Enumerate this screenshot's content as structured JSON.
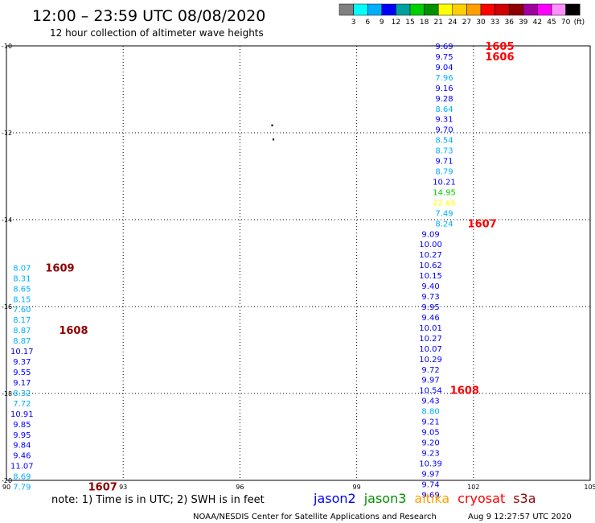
{
  "header": {
    "title": "12:00 – 23:59 UTC 08/08/2020",
    "subtitle": "12 hour collection of altimeter wave heights"
  },
  "colorbar": {
    "colors": [
      "#808080",
      "#00ffff",
      "#00b0ff",
      "#0000ff",
      "#00a0a0",
      "#00d000",
      "#009000",
      "#ffff00",
      "#ffd000",
      "#ffa000",
      "#ff0000",
      "#d00000",
      "#900000",
      "#a000a0",
      "#ff00ff",
      "#ff90ff",
      "#000000"
    ],
    "labels": [
      "3",
      "6",
      "9",
      "12",
      "15",
      "18",
      "21",
      "24",
      "27",
      "30",
      "33",
      "36",
      "39",
      "42",
      "45",
      "70"
    ],
    "unit": "(ft)"
  },
  "map": {
    "lat_labels": [
      "-10",
      "-12",
      "-14",
      "-16",
      "-18",
      "-20"
    ],
    "lon_labels": [
      "90",
      "93",
      "96",
      "99",
      "102",
      "105"
    ]
  },
  "tracks": [
    {
      "lon": 101.25,
      "points": [
        {
          "lat": -10.0,
          "v": "9.69",
          "c": "#0000ff"
        },
        {
          "lat": -10.24,
          "v": "9.75",
          "c": "#0000ff"
        },
        {
          "lat": -10.48,
          "v": "9.04",
          "c": "#0000ff"
        },
        {
          "lat": -10.72,
          "v": "7.96",
          "c": "#00b0ff"
        },
        {
          "lat": -10.96,
          "v": "9.16",
          "c": "#0000ff"
        },
        {
          "lat": -11.2,
          "v": "9.28",
          "c": "#0000ff"
        },
        {
          "lat": -11.44,
          "v": "8.64",
          "c": "#00b0ff"
        },
        {
          "lat": -11.68,
          "v": "9.31",
          "c": "#0000ff"
        },
        {
          "lat": -11.92,
          "v": "9.70",
          "c": "#0000ff"
        },
        {
          "lat": -12.16,
          "v": "8.54",
          "c": "#00b0ff"
        },
        {
          "lat": -12.4,
          "v": "8.73",
          "c": "#00b0ff"
        },
        {
          "lat": -12.64,
          "v": "9.71",
          "c": "#0000ff"
        },
        {
          "lat": -12.88,
          "v": "8.79",
          "c": "#00b0ff"
        },
        {
          "lat": -13.12,
          "v": "10.21",
          "c": "#0000ff"
        },
        {
          "lat": -13.36,
          "v": "14.95",
          "c": "#00d000"
        },
        {
          "lat": -13.6,
          "v": "22.65",
          "c": "#ffff00"
        },
        {
          "lat": -13.84,
          "v": "7.49",
          "c": "#00b0ff"
        },
        {
          "lat": -14.08,
          "v": "8.24",
          "c": "#00b0ff"
        }
      ]
    },
    {
      "lon": 100.9,
      "points": [
        {
          "lat": -14.32,
          "v": "9.09",
          "c": "#0000ff"
        },
        {
          "lat": -14.56,
          "v": "10.00",
          "c": "#0000ff"
        },
        {
          "lat": -14.8,
          "v": "10.27",
          "c": "#0000ff"
        },
        {
          "lat": -15.04,
          "v": "10.62",
          "c": "#0000ff"
        },
        {
          "lat": -15.28,
          "v": "10.15",
          "c": "#0000ff"
        },
        {
          "lat": -15.52,
          "v": "9.40",
          "c": "#0000ff"
        },
        {
          "lat": -15.76,
          "v": "9.73",
          "c": "#0000ff"
        },
        {
          "lat": -16.0,
          "v": "9.95",
          "c": "#0000ff"
        },
        {
          "lat": -16.24,
          "v": "9.46",
          "c": "#0000ff"
        },
        {
          "lat": -16.48,
          "v": "10.01",
          "c": "#0000ff"
        },
        {
          "lat": -16.72,
          "v": "10.27",
          "c": "#0000ff"
        },
        {
          "lat": -16.96,
          "v": "10.07",
          "c": "#0000ff"
        },
        {
          "lat": -17.2,
          "v": "10.29",
          "c": "#0000ff"
        },
        {
          "lat": -17.44,
          "v": "9.72",
          "c": "#0000ff"
        },
        {
          "lat": -17.68,
          "v": "9.97",
          "c": "#0000ff"
        },
        {
          "lat": -17.92,
          "v": "10.54",
          "c": "#0000ff"
        },
        {
          "lat": -18.16,
          "v": "9.43",
          "c": "#0000ff"
        },
        {
          "lat": -18.4,
          "v": "8.80",
          "c": "#00b0ff"
        },
        {
          "lat": -18.64,
          "v": "9.21",
          "c": "#0000ff"
        },
        {
          "lat": -18.88,
          "v": "9.05",
          "c": "#0000ff"
        },
        {
          "lat": -19.12,
          "v": "9.20",
          "c": "#0000ff"
        },
        {
          "lat": -19.36,
          "v": "9.23",
          "c": "#0000ff"
        },
        {
          "lat": -19.6,
          "v": "10.39",
          "c": "#0000ff"
        },
        {
          "lat": -19.84,
          "v": "9.97",
          "c": "#0000ff"
        },
        {
          "lat": -20.08,
          "v": "9.74",
          "c": "#0000ff"
        },
        {
          "lat": -20.32,
          "v": "9.69",
          "c": "#0000ff"
        }
      ]
    },
    {
      "lon": 90.4,
      "points": [
        {
          "lat": -15.1,
          "v": "8.07",
          "c": "#00b0ff"
        },
        {
          "lat": -15.34,
          "v": "8.31",
          "c": "#00b0ff"
        },
        {
          "lat": -15.58,
          "v": "8.65",
          "c": "#00b0ff"
        },
        {
          "lat": -15.82,
          "v": "8.15",
          "c": "#00b0ff"
        },
        {
          "lat": -16.06,
          "v": "7.60",
          "c": "#00b0ff"
        },
        {
          "lat": -16.3,
          "v": "8.17",
          "c": "#00b0ff"
        },
        {
          "lat": -16.54,
          "v": "8.87",
          "c": "#00b0ff"
        },
        {
          "lat": -16.78,
          "v": "8.87",
          "c": "#00b0ff"
        },
        {
          "lat": -17.02,
          "v": "10.17",
          "c": "#0000ff"
        },
        {
          "lat": -17.26,
          "v": "9.37",
          "c": "#0000ff"
        },
        {
          "lat": -17.5,
          "v": "9.55",
          "c": "#0000ff"
        },
        {
          "lat": -17.74,
          "v": "9.17",
          "c": "#0000ff"
        },
        {
          "lat": -17.98,
          "v": "8.32",
          "c": "#00b0ff"
        },
        {
          "lat": -18.22,
          "v": "7.72",
          "c": "#00b0ff"
        },
        {
          "lat": -18.46,
          "v": "10.91",
          "c": "#0000ff"
        },
        {
          "lat": -18.7,
          "v": "9.85",
          "c": "#0000ff"
        },
        {
          "lat": -18.94,
          "v": "9.95",
          "c": "#0000ff"
        },
        {
          "lat": -19.18,
          "v": "9.84",
          "c": "#0000ff"
        },
        {
          "lat": -19.42,
          "v": "9.46",
          "c": "#0000ff"
        },
        {
          "lat": -19.66,
          "v": "11.07",
          "c": "#0000ff"
        },
        {
          "lat": -19.9,
          "v": "8.69",
          "c": "#00b0ff"
        },
        {
          "lat": -20.14,
          "v": "7.79",
          "c": "#00b0ff"
        }
      ]
    }
  ],
  "time_labels": [
    {
      "text": "1605",
      "lon": 102.3,
      "lat": -10.0,
      "c": "#ff0000"
    },
    {
      "text": "1606",
      "lon": 102.3,
      "lat": -10.24,
      "c": "#ff0000"
    },
    {
      "text": "1607",
      "lon": 101.85,
      "lat": -14.08,
      "c": "#ff0000"
    },
    {
      "text": "1608",
      "lon": 101.4,
      "lat": -17.92,
      "c": "#ff0000"
    },
    {
      "text": "1609",
      "lon": 91.0,
      "lat": -15.1,
      "c": "#900000"
    },
    {
      "text": "1608",
      "lon": 91.35,
      "lat": -16.54,
      "c": "#900000"
    },
    {
      "text": "1607",
      "lon": 92.1,
      "lat": -20.14,
      "c": "#900000"
    }
  ],
  "island_marks": [
    {
      "text": "·",
      "lon": 96.83,
      "lat": -11.83
    },
    {
      "text": "·",
      "lon": 96.86,
      "lat": -12.16
    }
  ],
  "footer": {
    "note": "note:  1) Time is in UTC;  2) SWH is in feet",
    "credit": "NOAA/NESDIS Center for Satellite Applications and Research",
    "timestamp": "Aug  9 12:27:57 UTC 2020"
  },
  "legend": [
    {
      "name": "jason2",
      "color": "#0000ff"
    },
    {
      "name": "jason3",
      "color": "#009000"
    },
    {
      "name": "altika",
      "color": "#ffa000"
    },
    {
      "name": "cryosat",
      "color": "#ff0000"
    },
    {
      "name": "s3a",
      "color": "#900000"
    }
  ]
}
